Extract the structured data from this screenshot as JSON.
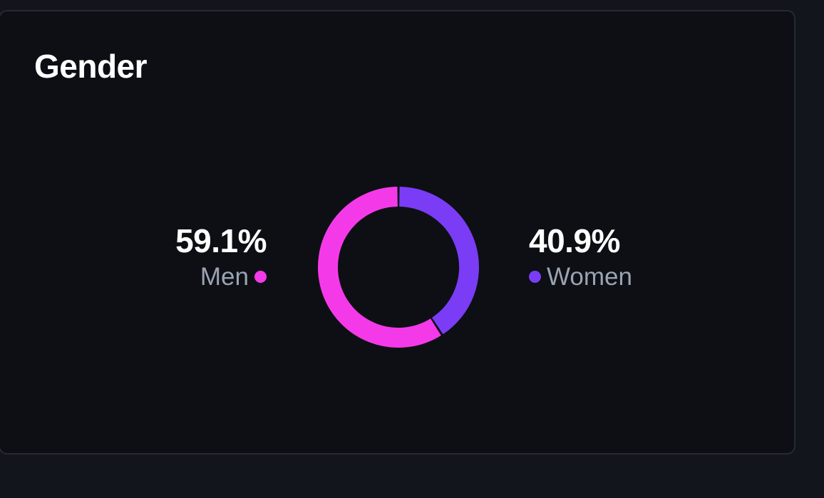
{
  "card": {
    "title": "Gender"
  },
  "chart_data": {
    "type": "pie",
    "title": "Gender",
    "series": [
      {
        "name": "Women",
        "value": 40.9,
        "label": "40.9%",
        "color": "#7b3cf5"
      },
      {
        "name": "Men",
        "value": 59.1,
        "label": "59.1%",
        "color": "#f43ae8"
      }
    ]
  },
  "stats": {
    "men": {
      "value": "59.1%",
      "label": "Men",
      "color": "#f43ae8"
    },
    "women": {
      "value": "40.9%",
      "label": "Women",
      "color": "#7b3cf5"
    }
  }
}
